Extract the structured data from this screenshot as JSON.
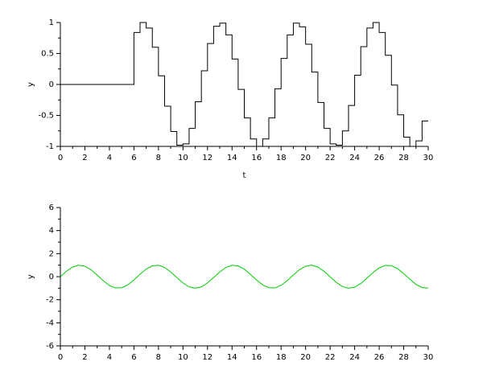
{
  "chart_data": [
    {
      "type": "step",
      "xlabel": "t",
      "ylabel": "y",
      "x": [
        0,
        6,
        6.5,
        7,
        7.5,
        8,
        8.5,
        9,
        9.5,
        10,
        10.5,
        11,
        11.5,
        12,
        12.5,
        13,
        13.5,
        14,
        14.5,
        15,
        15.5,
        16,
        16.5,
        17,
        17.5,
        18,
        18.5,
        19,
        19.5,
        20,
        20.5,
        21,
        21.5,
        22,
        22.5,
        23,
        23.5,
        24,
        24.5,
        25,
        25.5,
        26,
        26.5,
        27,
        27.5,
        28,
        28.5,
        29,
        29.5
      ],
      "series": [
        {
          "color": "#000000",
          "values": [
            0,
            0.84,
            1.0,
            0.91,
            0.6,
            0.14,
            -0.35,
            -0.76,
            -0.98,
            -0.96,
            -0.71,
            -0.28,
            0.22,
            0.66,
            0.94,
            0.99,
            0.8,
            0.41,
            -0.08,
            -0.54,
            -0.88,
            -1.0,
            -0.88,
            -0.54,
            -0.07,
            0.42,
            0.8,
            0.99,
            0.93,
            0.65,
            0.2,
            -0.29,
            -0.71,
            -0.96,
            -0.98,
            -0.75,
            -0.34,
            0.15,
            0.61,
            0.91,
            1.0,
            0.84,
            0.47,
            -0.01,
            -0.49,
            -0.85,
            -1.0,
            -0.91,
            -0.59
          ]
        }
      ],
      "xlim": [
        0,
        30
      ],
      "xticks": [
        0,
        2,
        4,
        6,
        8,
        10,
        12,
        14,
        16,
        18,
        20,
        22,
        24,
        26,
        28,
        30
      ],
      "ylim": [
        -1,
        1
      ],
      "yticks": [
        -1,
        -0.5,
        0,
        0.5,
        1
      ]
    },
    {
      "type": "line",
      "ylabel": "y",
      "x": [
        0,
        0.5,
        1,
        1.5,
        2,
        2.5,
        3,
        3.5,
        4,
        4.5,
        5,
        5.5,
        6,
        6.5,
        7,
        7.5,
        8,
        8.5,
        9,
        9.5,
        10,
        10.5,
        11,
        11.5,
        12,
        12.5,
        13,
        13.5,
        14,
        14.5,
        15,
        15.5,
        16,
        16.5,
        17,
        17.5,
        18,
        18.5,
        19,
        19.5,
        20,
        20.5,
        21,
        21.5,
        22,
        22.5,
        23,
        23.5,
        24,
        24.5,
        25,
        25.5,
        26,
        26.5,
        27,
        27.5,
        28,
        28.5,
        29,
        29.5,
        30
      ],
      "series": [
        {
          "color": "#00cc00",
          "values": [
            0,
            0.48,
            0.84,
            1.0,
            0.91,
            0.6,
            0.14,
            -0.35,
            -0.76,
            -0.98,
            -0.96,
            -0.71,
            -0.28,
            0.22,
            0.66,
            0.94,
            0.99,
            0.8,
            0.41,
            -0.08,
            -0.54,
            -0.88,
            -1.0,
            -0.88,
            -0.54,
            -0.07,
            0.42,
            0.8,
            0.99,
            0.93,
            0.65,
            0.2,
            -0.29,
            -0.71,
            -0.96,
            -0.98,
            -0.75,
            -0.34,
            0.15,
            0.61,
            0.91,
            1.0,
            0.84,
            0.47,
            -0.01,
            -0.49,
            -0.85,
            -1.0,
            -0.91,
            -0.59,
            -0.13,
            0.36,
            0.76,
            0.98,
            0.96,
            0.7,
            0.27,
            -0.22,
            -0.66,
            -0.94,
            -0.99
          ]
        }
      ],
      "xlim": [
        0,
        30
      ],
      "xticks": [
        0,
        2,
        4,
        6,
        8,
        10,
        12,
        14,
        16,
        18,
        20,
        22,
        24,
        26,
        28,
        30
      ],
      "ylim": [
        -6,
        6
      ],
      "yticks": [
        -6,
        -4,
        -2,
        0,
        2,
        4,
        6
      ]
    }
  ]
}
